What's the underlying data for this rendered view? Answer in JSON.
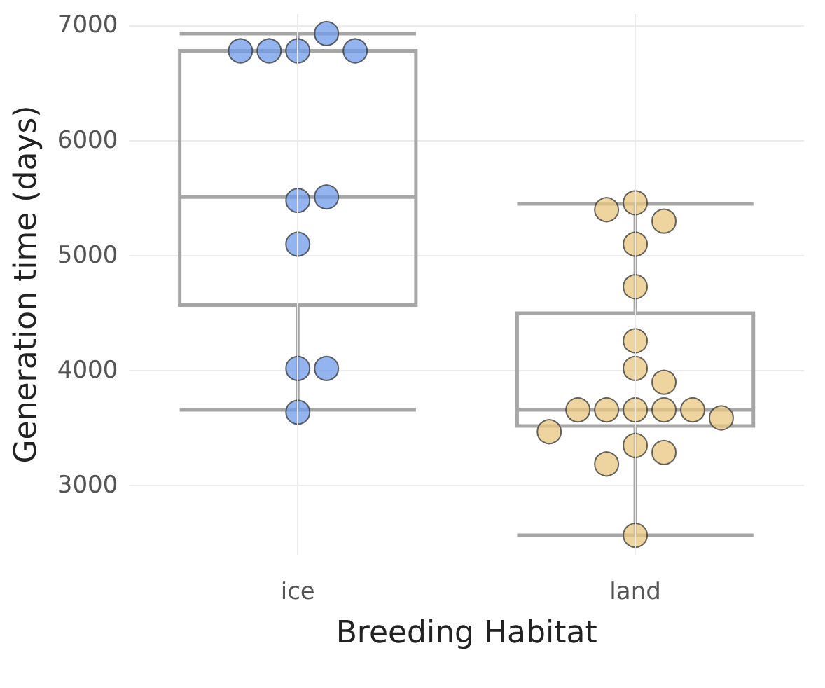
{
  "chart_data": {
    "type": "box",
    "xlabel": "Breeding Habitat",
    "ylabel": "Generation time (days)",
    "categories": [
      "ice",
      "land"
    ],
    "boxes": [
      {
        "low": 3660,
        "q1": 4570,
        "median": 5510,
        "q3": 6780,
        "high": 6930
      },
      {
        "low": 2570,
        "q1": 3520,
        "median": 3660,
        "q3": 4500,
        "high": 5450
      }
    ],
    "color": "#a6a6a6",
    "series": [
      {
        "type": "scatter",
        "color": "#6f9be8",
        "x": [
          "ice",
          "ice",
          "ice",
          "ice",
          "ice",
          "ice",
          "ice",
          "ice",
          "ice",
          "ice",
          "ice"
        ],
        "values": [
          6780,
          6930,
          6780,
          6780,
          6780,
          5480,
          5510,
          5100,
          4020,
          4020,
          3640
        ]
      },
      {
        "type": "scatter",
        "color": "#e8c57f",
        "x": [
          "land",
          "land",
          "land",
          "land",
          "land",
          "land",
          "land",
          "land",
          "land",
          "land",
          "land",
          "land",
          "land",
          "land",
          "land",
          "land",
          "land",
          "land",
          "land"
        ],
        "values": [
          5460,
          5300,
          5400,
          5100,
          4730,
          4260,
          4020,
          3900,
          3660,
          3660,
          3660,
          3660,
          3660,
          3590,
          3470,
          3350,
          3290,
          3190,
          2570
        ]
      }
    ],
    "ylim": [
      2400,
      7100
    ],
    "yticks": [
      3000,
      4000,
      5000,
      6000,
      7000
    ],
    "grid": true,
    "marker": "circle"
  }
}
